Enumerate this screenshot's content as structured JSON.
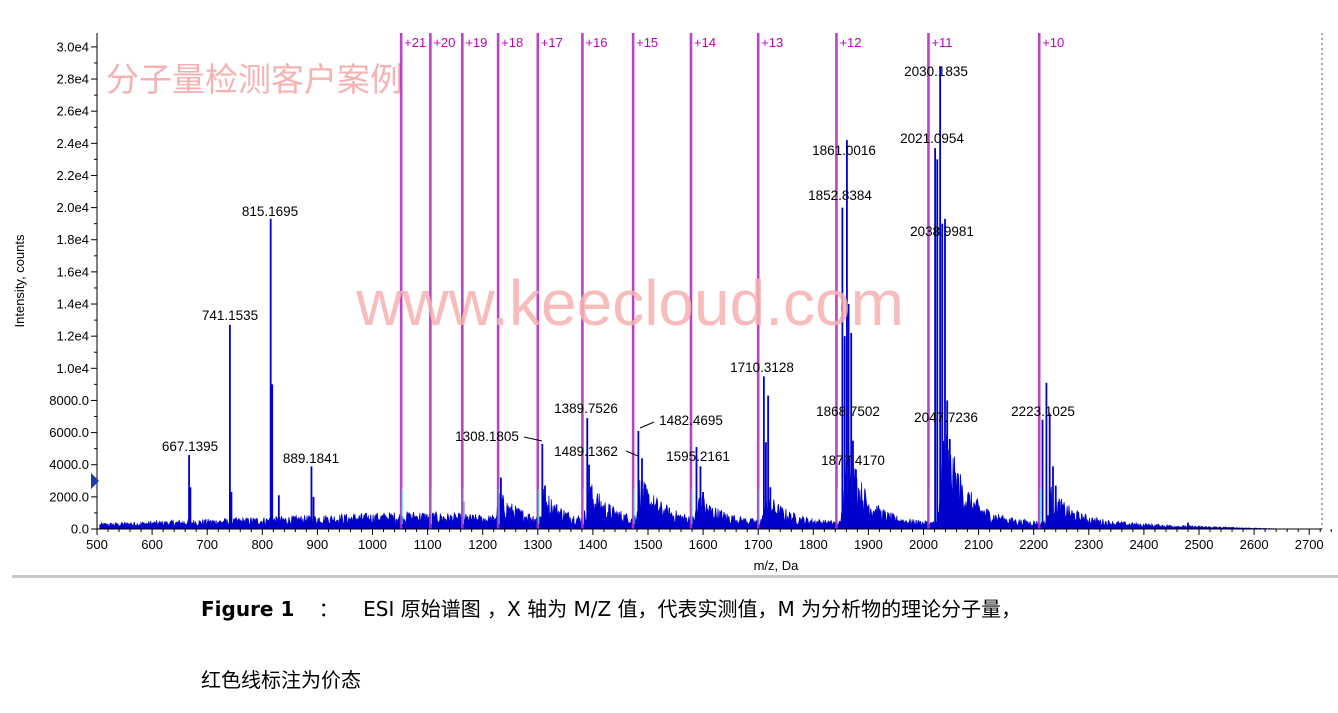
{
  "chart_data": {
    "type": "line",
    "xlabel": "m/z, Da",
    "ylabel": "Intensity, counts",
    "xlim": [
      500,
      2750
    ],
    "ylim": [
      0,
      30000
    ],
    "x_ticks": [
      "500",
      "600",
      "700",
      "800",
      "900",
      "1000",
      "1100",
      "1200",
      "1300",
      "1400",
      "1500",
      "1600",
      "1700",
      "1800",
      "1900",
      "2000",
      "2100",
      "2200",
      "2300",
      "2400",
      "2500",
      "2600",
      "2700"
    ],
    "x_tick_values": [
      500,
      600,
      700,
      800,
      900,
      1000,
      1100,
      1200,
      1300,
      1400,
      1500,
      1600,
      1700,
      1800,
      1900,
      2000,
      2100,
      2200,
      2300,
      2400,
      2500,
      2600,
      2700
    ],
    "y_ticks": [
      "0.0",
      "2000.0",
      "4000.0",
      "6000.0",
      "8000.0",
      "1.0e4",
      "1.2e4",
      "1.4e4",
      "1.6e4",
      "1.8e4",
      "2.0e4",
      "2.2e4",
      "2.4e4",
      "2.6e4",
      "2.8e4",
      "3.0e4"
    ],
    "y_tick_values": [
      0,
      2000,
      4000,
      6000,
      8000,
      10000,
      12000,
      14000,
      16000,
      18000,
      20000,
      22000,
      24000,
      26000,
      28000,
      30000
    ],
    "series_color": "#0000cc",
    "charge_color": "#b030c0",
    "peaks": [
      {
        "mz": 667.1,
        "intensity": 4600
      },
      {
        "mz": 669.5,
        "intensity": 2600
      },
      {
        "mz": 741.2,
        "intensity": 12700
      },
      {
        "mz": 744.0,
        "intensity": 2300
      },
      {
        "mz": 815.2,
        "intensity": 19300
      },
      {
        "mz": 818.0,
        "intensity": 9000
      },
      {
        "mz": 830.0,
        "intensity": 2100
      },
      {
        "mz": 889.2,
        "intensity": 3900
      },
      {
        "mz": 893.0,
        "intensity": 2000
      },
      {
        "mz": 1165.0,
        "intensity": 1700
      },
      {
        "mz": 1233.0,
        "intensity": 3200
      },
      {
        "mz": 1308.2,
        "intensity": 5300
      },
      {
        "mz": 1313.0,
        "intensity": 2700
      },
      {
        "mz": 1389.8,
        "intensity": 6900
      },
      {
        "mz": 1393.0,
        "intensity": 4000
      },
      {
        "mz": 1397.0,
        "intensity": 2600
      },
      {
        "mz": 1482.5,
        "intensity": 6100
      },
      {
        "mz": 1489.1,
        "intensity": 4400
      },
      {
        "mz": 1493.0,
        "intensity": 2500
      },
      {
        "mz": 1588.0,
        "intensity": 5100
      },
      {
        "mz": 1595.2,
        "intensity": 3900
      },
      {
        "mz": 1600.0,
        "intensity": 2300
      },
      {
        "mz": 1710.3,
        "intensity": 9500
      },
      {
        "mz": 1714.0,
        "intensity": 5400
      },
      {
        "mz": 1718.0,
        "intensity": 8300
      },
      {
        "mz": 1722.0,
        "intensity": 2600
      },
      {
        "mz": 1852.8,
        "intensity": 20000
      },
      {
        "mz": 1857.0,
        "intensity": 12000
      },
      {
        "mz": 1861.0,
        "intensity": 24200
      },
      {
        "mz": 1864.0,
        "intensity": 14000
      },
      {
        "mz": 1868.8,
        "intensity": 12200
      },
      {
        "mz": 1872.0,
        "intensity": 5500
      },
      {
        "mz": 1877.4,
        "intensity": 3700
      },
      {
        "mz": 2021.1,
        "intensity": 23700
      },
      {
        "mz": 2025.0,
        "intensity": 23000
      },
      {
        "mz": 2030.2,
        "intensity": 28800
      },
      {
        "mz": 2034.0,
        "intensity": 19000
      },
      {
        "mz": 2039.0,
        "intensity": 19300
      },
      {
        "mz": 2043.0,
        "intensity": 8000
      },
      {
        "mz": 2047.7,
        "intensity": 5600
      },
      {
        "mz": 2216.0,
        "intensity": 6800
      },
      {
        "mz": 2223.1,
        "intensity": 9100
      },
      {
        "mz": 2229.0,
        "intensity": 7200
      },
      {
        "mz": 2235.0,
        "intensity": 3900
      },
      {
        "mz": 2240.0,
        "intensity": 2700
      },
      {
        "mz": 2480.0,
        "intensity": 400
      }
    ],
    "envelopes": [
      {
        "center": 1230,
        "height": 1300,
        "width": 35
      },
      {
        "center": 1310,
        "height": 1700,
        "width": 40
      },
      {
        "center": 1392,
        "height": 2000,
        "width": 45
      },
      {
        "center": 1485,
        "height": 2100,
        "width": 48
      },
      {
        "center": 1592,
        "height": 1300,
        "width": 45
      },
      {
        "center": 1715,
        "height": 1500,
        "width": 40
      },
      {
        "center": 1860,
        "height": 4500,
        "width": 35
      },
      {
        "center": 2035,
        "height": 5500,
        "width": 40
      },
      {
        "center": 2232,
        "height": 1800,
        "width": 40
      }
    ],
    "peak_labels": [
      {
        "text": "667.1395",
        "mz": 667.1,
        "intensity": 4600
      },
      {
        "text": "741.1535",
        "mz": 741.2,
        "intensity": 12700
      },
      {
        "text": "815.1695",
        "mz": 815.2,
        "intensity": 19300
      },
      {
        "text": "889.1841",
        "mz": 889.2,
        "intensity": 3900
      },
      {
        "text": "1308.1805",
        "mz": 1308.2,
        "intensity": 5300
      },
      {
        "text": "1389.7526",
        "mz": 1389.8,
        "intensity": 6900
      },
      {
        "text": "1489.1362",
        "mz": 1489.1,
        "intensity": 4400
      },
      {
        "text": "1482.4695",
        "mz": 1482.5,
        "intensity": 6100
      },
      {
        "text": "1595.2161",
        "mz": 1595.2,
        "intensity": 3900
      },
      {
        "text": "1710.3128",
        "mz": 1710.3,
        "intensity": 9500
      },
      {
        "text": "1861.0016",
        "mz": 1861.0,
        "intensity": 24200
      },
      {
        "text": "1852.8384",
        "mz": 1852.8,
        "intensity": 20000
      },
      {
        "text": "1868.7502",
        "mz": 1868.8,
        "intensity": 7000
      },
      {
        "text": "1877.4170",
        "mz": 1877.4,
        "intensity": 3700
      },
      {
        "text": "2030.1835",
        "mz": 2030.2,
        "intensity": 28800
      },
      {
        "text": "2021.0954",
        "mz": 2021.1,
        "intensity": 23700
      },
      {
        "text": "2038.9981",
        "mz": 2039.0,
        "intensity": 19300
      },
      {
        "text": "2047.7236",
        "mz": 2047.7,
        "intensity": 5600
      },
      {
        "text": "2223.1025",
        "mz": 2223.1,
        "intensity": 7000
      }
    ],
    "charge_lines": [
      {
        "label": "+21",
        "mz": 1052
      },
      {
        "label": "+20",
        "mz": 1105
      },
      {
        "label": "+19",
        "mz": 1163
      },
      {
        "label": "+18",
        "mz": 1228
      },
      {
        "label": "+17",
        "mz": 1300
      },
      {
        "label": "+16",
        "mz": 1381
      },
      {
        "label": "+15",
        "mz": 1473
      },
      {
        "label": "+14",
        "mz": 1578
      },
      {
        "label": "+13",
        "mz": 1700
      },
      {
        "label": "+12",
        "mz": 1842
      },
      {
        "label": "+11",
        "mz": 2009
      },
      {
        "label": "+10",
        "mz": 2210
      }
    ]
  },
  "watermarks": {
    "cn": "分子量检测客户案例",
    "url": "www.keecloud.com"
  },
  "caption": {
    "figure_label": "Figure 1",
    "separator": "：",
    "line1_text": "ESI 原始谱图 ，X 轴为 M/Z 值，代表实测值，M 为分析物的理论分子量，",
    "line2_text": "红色线标注为价态"
  }
}
